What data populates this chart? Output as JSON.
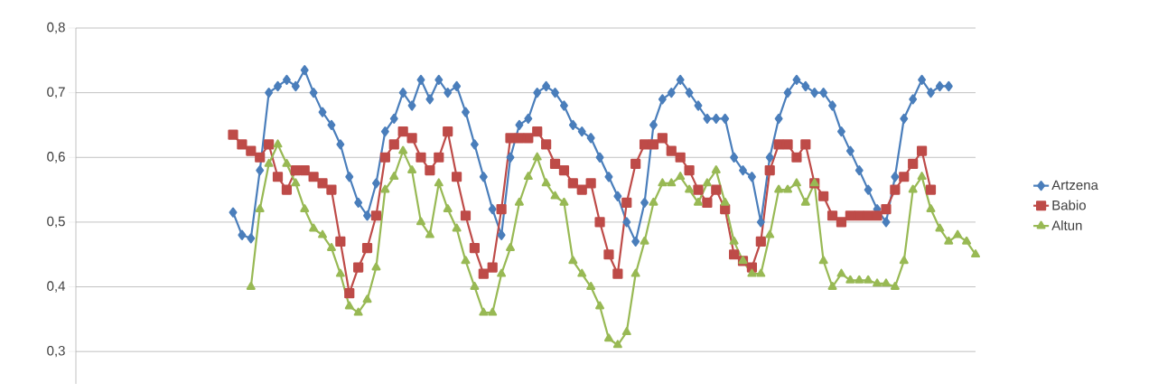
{
  "chart_data": {
    "type": "line",
    "categories": [
      null,
      null,
      null,
      null,
      null,
      null,
      null,
      null,
      null,
      null,
      null,
      null,
      null,
      null,
      null,
      null,
      null,
      null,
      null,
      null,
      null,
      null,
      null,
      null,
      null,
      null,
      null,
      null,
      null,
      null,
      null,
      null,
      null,
      null,
      null,
      null,
      null,
      null,
      null,
      null,
      null,
      null,
      null,
      null,
      null,
      null,
      null,
      null,
      null,
      null,
      null,
      null,
      null,
      null,
      null,
      null,
      null,
      null,
      null,
      null,
      null,
      null,
      null,
      null,
      null,
      null,
      null,
      null,
      null,
      null,
      null,
      null,
      null,
      null,
      null,
      null,
      null,
      null,
      null,
      null,
      null,
      null,
      null,
      null
    ],
    "series": [
      {
        "name": "Artzena",
        "color": "#4a7ebb",
        "marker": "diamond",
        "values": [
          0.515,
          0.48,
          0.475,
          0.58,
          0.7,
          0.71,
          0.72,
          0.71,
          0.735,
          0.7,
          0.67,
          0.65,
          0.62,
          0.57,
          0.53,
          0.51,
          0.56,
          0.64,
          0.66,
          0.7,
          0.68,
          0.72,
          0.69,
          0.72,
          0.7,
          0.71,
          0.67,
          0.62,
          0.57,
          0.52,
          0.48,
          0.6,
          0.65,
          0.66,
          0.7,
          0.71,
          0.7,
          0.68,
          0.65,
          0.64,
          0.63,
          0.6,
          0.57,
          0.54,
          0.5,
          0.47,
          0.53,
          0.65,
          0.69,
          0.7,
          0.72,
          0.7,
          0.68,
          0.66,
          0.66,
          0.66,
          0.6,
          0.58,
          0.57,
          0.5,
          0.6,
          0.66,
          0.7,
          0.72,
          0.71,
          0.7,
          0.7,
          0.68,
          0.64,
          0.61,
          0.58,
          0.55,
          0.52,
          0.5,
          0.57,
          0.66,
          0.69,
          0.72,
          0.7,
          0.71,
          0.71,
          null,
          null,
          null
        ]
      },
      {
        "name": "Babio",
        "color": "#be4b48",
        "marker": "square",
        "values": [
          0.635,
          0.62,
          0.61,
          0.6,
          0.62,
          0.57,
          0.55,
          0.58,
          0.58,
          0.57,
          0.56,
          0.55,
          0.47,
          0.39,
          0.43,
          0.46,
          0.51,
          0.6,
          0.62,
          0.64,
          0.63,
          0.6,
          0.58,
          0.6,
          0.64,
          0.57,
          0.51,
          0.46,
          0.42,
          0.43,
          0.52,
          0.63,
          0.63,
          0.63,
          0.64,
          0.62,
          0.59,
          0.58,
          0.56,
          0.55,
          0.56,
          0.5,
          0.45,
          0.42,
          0.53,
          0.59,
          0.62,
          0.62,
          0.63,
          0.61,
          0.6,
          0.58,
          0.55,
          0.53,
          0.55,
          0.52,
          0.45,
          0.44,
          0.43,
          0.47,
          0.58,
          0.62,
          0.62,
          0.6,
          0.62,
          0.56,
          0.54,
          0.51,
          0.5,
          0.51,
          0.51,
          0.51,
          0.51,
          0.52,
          0.55,
          0.57,
          0.59,
          0.61,
          0.55,
          null,
          null,
          null,
          null,
          null
        ]
      },
      {
        "name": "Altun",
        "color": "#98b954",
        "marker": "triangle",
        "values": [
          null,
          null,
          0.4,
          0.52,
          0.59,
          0.62,
          0.59,
          0.56,
          0.52,
          0.49,
          0.48,
          0.46,
          0.42,
          0.37,
          0.36,
          0.38,
          0.43,
          0.55,
          0.57,
          0.61,
          0.58,
          0.5,
          0.48,
          0.56,
          0.52,
          0.49,
          0.44,
          0.4,
          0.36,
          0.36,
          0.42,
          0.46,
          0.53,
          0.57,
          0.6,
          0.56,
          0.54,
          0.53,
          0.44,
          0.42,
          0.4,
          0.37,
          0.32,
          0.31,
          0.33,
          0.42,
          0.47,
          0.53,
          0.56,
          0.56,
          0.57,
          0.55,
          0.53,
          0.56,
          0.58,
          0.53,
          0.47,
          0.44,
          0.42,
          0.42,
          0.48,
          0.55,
          0.55,
          0.56,
          0.53,
          0.56,
          0.44,
          0.4,
          0.42,
          0.41,
          0.41,
          0.41,
          0.405,
          0.405,
          0.4,
          0.44,
          0.55,
          0.57,
          0.52,
          0.49,
          0.47,
          0.48,
          0.47,
          0.45
        ]
      }
    ],
    "ylim": [
      0.25,
      0.8
    ],
    "yticks": [
      {
        "value": 0.3,
        "label": "0,3"
      },
      {
        "value": 0.4,
        "label": "0,4"
      },
      {
        "value": 0.5,
        "label": "0,5"
      },
      {
        "value": 0.6,
        "label": "0,6"
      },
      {
        "value": 0.7,
        "label": "0,7"
      },
      {
        "value": 0.8,
        "label": "0,8"
      }
    ],
    "grid": "y",
    "legend": "right",
    "line_style": "solid"
  }
}
